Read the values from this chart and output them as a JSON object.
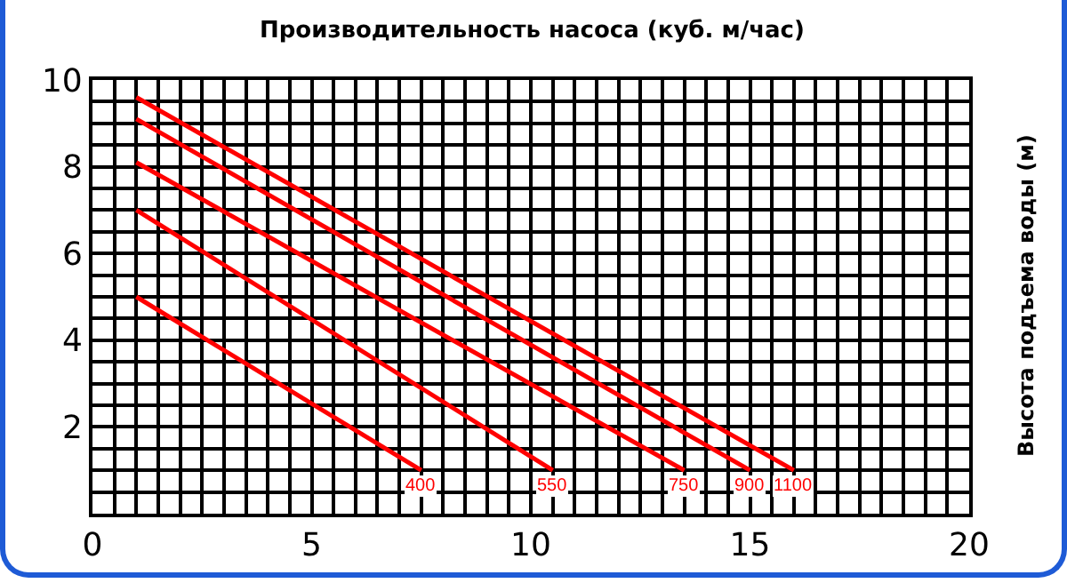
{
  "chart_data": {
    "type": "line",
    "xlabel": "Производительность насоса (куб. м/час)",
    "ylabel": "Высота подъема воды (м)",
    "xlim": [
      0,
      20
    ],
    "xticks": [
      0,
      5,
      10,
      15,
      20
    ],
    "ylim": [
      0,
      10
    ],
    "yticks": [
      2,
      4,
      6,
      8,
      10
    ],
    "grid": true,
    "legend": false,
    "marker": "none",
    "line_style": "solid",
    "series": [
      {
        "name": "400",
        "color": "#ff0000",
        "x": [
          1,
          7.5
        ],
        "values": [
          5,
          1
        ]
      },
      {
        "name": "550",
        "color": "#ff0000",
        "x": [
          1,
          10.5
        ],
        "values": [
          7,
          1
        ]
      },
      {
        "name": "750",
        "color": "#ff0000",
        "x": [
          1,
          13.5
        ],
        "values": [
          8.1,
          1
        ]
      },
      {
        "name": "900",
        "color": "#ff0000",
        "x": [
          1,
          15
        ],
        "values": [
          9.1,
          1
        ]
      },
      {
        "name": "1100",
        "color": "#ff0000",
        "x": [
          1,
          16
        ],
        "values": [
          9.6,
          1
        ]
      }
    ]
  }
}
